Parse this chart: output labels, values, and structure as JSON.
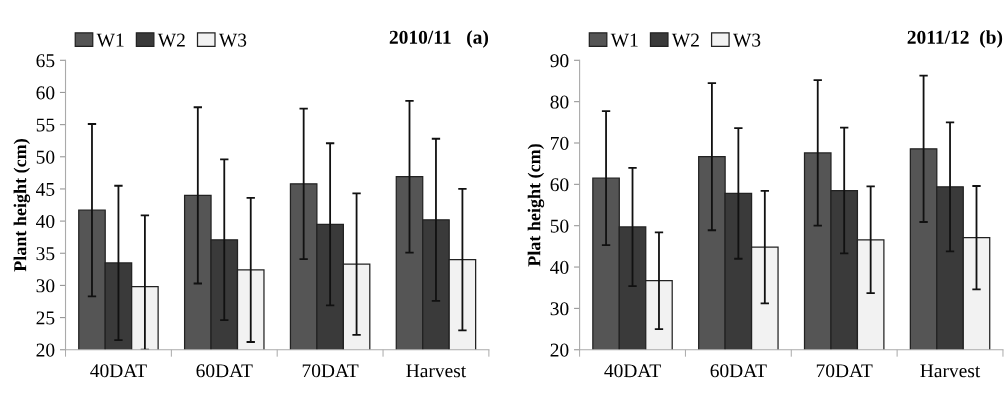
{
  "chart_data": [
    {
      "type": "bar",
      "title": "2010/11   (a)",
      "ylabel": "Plant height (cm)",
      "categories": [
        "40DAT",
        "60DAT",
        "70DAT",
        "Harvest"
      ],
      "ylim": [
        20,
        65
      ],
      "yticks": [
        20,
        25,
        30,
        35,
        40,
        45,
        50,
        55,
        60,
        65
      ],
      "grid": false,
      "legend": "top left",
      "series": [
        {
          "name": "W1",
          "color": "#555555",
          "values": [
            41.7,
            44.0,
            45.8,
            46.9
          ],
          "errors": [
            13.4,
            13.7,
            11.7,
            11.8
          ]
        },
        {
          "name": "W2",
          "color": "#3a3a3a",
          "values": [
            33.5,
            37.1,
            39.5,
            40.2
          ],
          "errors": [
            12.0,
            12.5,
            12.6,
            12.6
          ]
        },
        {
          "name": "W3",
          "color": "#f2f2f2",
          "values": [
            29.8,
            32.4,
            33.3,
            34.0
          ],
          "errors": [
            [
              20.0,
              40.9
            ],
            11.2,
            11.0,
            11.0
          ]
        }
      ]
    },
    {
      "type": "bar",
      "title": "2011/12  (b)",
      "ylabel": "Plat height (cm)",
      "categories": [
        "40DAT",
        "60DAT",
        "70DAT",
        "Harvest"
      ],
      "ylim": [
        20,
        90
      ],
      "yticks": [
        20,
        30,
        40,
        50,
        60,
        70,
        80,
        90
      ],
      "grid": false,
      "legend": "top left",
      "series": [
        {
          "name": "W1",
          "color": "#555555",
          "values": [
            61.5,
            66.7,
            67.6,
            68.6
          ],
          "errors": [
            16.2,
            17.8,
            17.6,
            17.7
          ]
        },
        {
          "name": "W2",
          "color": "#3a3a3a",
          "values": [
            49.7,
            57.8,
            58.5,
            59.4
          ],
          "errors": [
            14.3,
            15.8,
            15.2,
            15.6
          ]
        },
        {
          "name": "W3",
          "color": "#f2f2f2",
          "values": [
            36.7,
            44.8,
            46.6,
            47.1
          ],
          "errors": [
            11.7,
            13.6,
            12.9,
            12.5
          ]
        }
      ]
    }
  ]
}
